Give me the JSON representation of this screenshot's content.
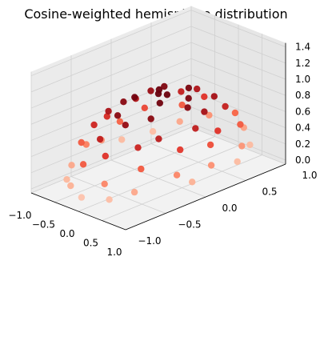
{
  "chart_data": {
    "type": "scatter3d",
    "title": "Cosine-weighted hemisphere distribution",
    "xlabel": "",
    "ylabel": "",
    "zlabel": "",
    "xlim": [
      -1.0,
      1.0
    ],
    "ylim": [
      -1.0,
      1.0
    ],
    "zlim": [
      0.0,
      1.4
    ],
    "x_ticks": [
      "−1.0",
      "−0.5",
      "0.0",
      "0.5",
      "1.0"
    ],
    "y_ticks": [
      "−1.0",
      "−0.5",
      "0.0",
      "0.5",
      "1.0"
    ],
    "z_ticks": [
      "0.0",
      "0.2",
      "0.4",
      "0.6",
      "0.8",
      "1.0",
      "1.2",
      "1.4"
    ],
    "grid": true,
    "colormap": "Reds",
    "color_by": "z",
    "colormap_stops": [
      "#fee8dd",
      "#fcae91",
      "#fb6a4a",
      "#de2d26",
      "#a50f15",
      "#67000d"
    ],
    "pane_color": "#f2f2f2",
    "series": [
      {
        "distribution": "cosine-weighted unit hemisphere",
        "z_from_xy": "sqrt(1 - x^2 - y^2)",
        "points": [
          [
            0.0,
            0.0,
            1.0
          ],
          [
            0.1,
            0.05,
            0.99
          ],
          [
            -0.12,
            0.08,
            0.99
          ],
          [
            0.2,
            -0.1,
            0.97
          ],
          [
            -0.25,
            -0.15,
            0.96
          ],
          [
            0.3,
            0.2,
            0.93
          ],
          [
            -0.3,
            0.25,
            0.92
          ],
          [
            0.05,
            0.35,
            0.94
          ],
          [
            0.35,
            -0.3,
            0.89
          ],
          [
            -0.4,
            -0.2,
            0.89
          ],
          [
            0.45,
            0.1,
            0.89
          ],
          [
            -0.1,
            -0.45,
            0.89
          ],
          [
            0.15,
            -0.5,
            0.85
          ],
          [
            -0.5,
            0.2,
            0.84
          ],
          [
            0.55,
            0.25,
            0.8
          ],
          [
            -0.55,
            -0.3,
            0.78
          ],
          [
            0.25,
            0.55,
            0.8
          ],
          [
            -0.2,
            0.6,
            0.77
          ],
          [
            0.6,
            -0.35,
            0.72
          ],
          [
            -0.65,
            0.1,
            0.75
          ],
          [
            0.7,
            0.05,
            0.71
          ],
          [
            -0.05,
            -0.7,
            0.71
          ],
          [
            0.4,
            0.6,
            0.69
          ],
          [
            -0.45,
            0.55,
            0.7
          ],
          [
            0.5,
            -0.55,
            0.67
          ],
          [
            -0.6,
            -0.45,
            0.66
          ],
          [
            0.75,
            0.3,
            0.59
          ],
          [
            -0.75,
            -0.2,
            0.63
          ],
          [
            0.2,
            -0.78,
            0.59
          ],
          [
            -0.3,
            0.75,
            0.59
          ],
          [
            0.8,
            -0.2,
            0.57
          ],
          [
            -0.8,
            0.3,
            0.52
          ],
          [
            0.55,
            0.7,
            0.46
          ],
          [
            -0.6,
            0.65,
            0.46
          ],
          [
            0.65,
            -0.6,
            0.46
          ],
          [
            -0.7,
            -0.55,
            0.46
          ],
          [
            0.85,
            0.15,
            0.5
          ],
          [
            -0.1,
            -0.88,
            0.46
          ],
          [
            0.1,
            0.9,
            0.42
          ],
          [
            -0.9,
            0.05,
            0.43
          ],
          [
            0.9,
            -0.3,
            0.32
          ],
          [
            -0.85,
            -0.4,
            0.34
          ],
          [
            0.35,
            -0.88,
            0.32
          ],
          [
            -0.4,
            0.87,
            0.29
          ],
          [
            0.75,
            0.6,
            0.28
          ],
          [
            -0.7,
            0.68,
            0.22
          ],
          [
            0.68,
            -0.7,
            0.22
          ],
          [
            -0.72,
            -0.66,
            0.22
          ],
          [
            0.95,
            0.1,
            0.29
          ],
          [
            -0.95,
            -0.15,
            0.27
          ],
          [
            0.2,
            0.95,
            0.24
          ],
          [
            -0.25,
            -0.95,
            0.19
          ],
          [
            0.97,
            -0.15,
            0.19
          ],
          [
            -0.5,
            -0.85,
            0.17
          ],
          [
            0.55,
            0.82,
            0.16
          ],
          [
            -0.98,
            0.12,
            0.16
          ],
          [
            0.05,
            -0.99,
            0.13
          ],
          [
            0.86,
            0.48,
            0.16
          ],
          [
            -0.88,
            0.45,
            0.15
          ],
          [
            0.45,
            -0.88,
            0.15
          ]
        ]
      }
    ]
  }
}
